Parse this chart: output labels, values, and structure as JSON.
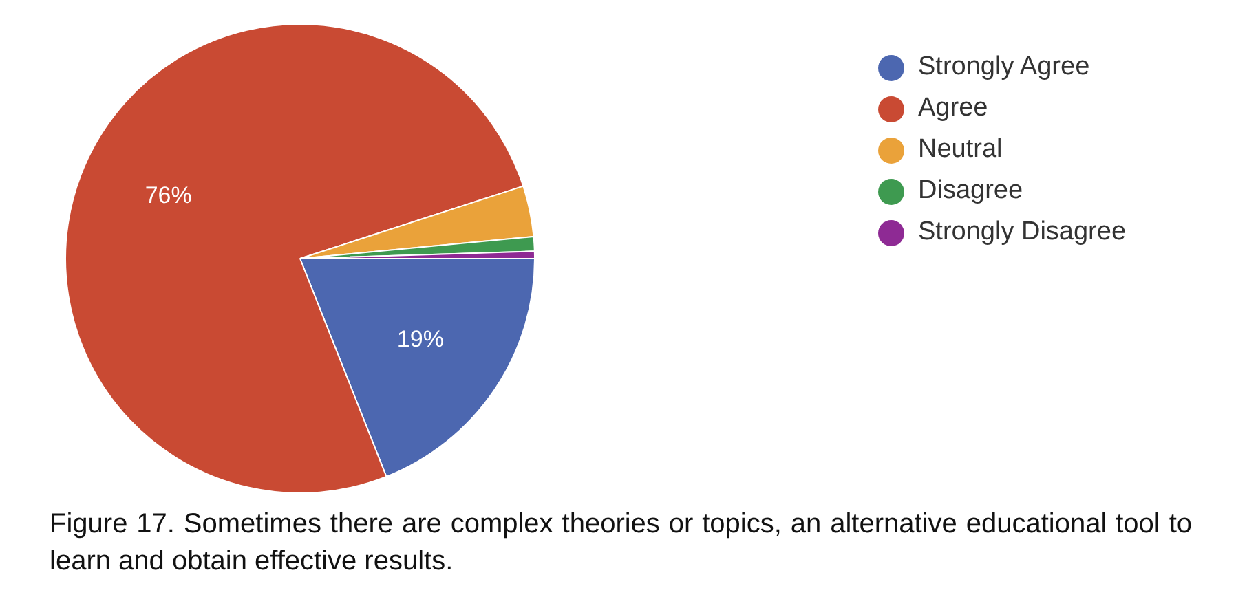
{
  "chart_data": {
    "type": "pie",
    "categories": [
      "Strongly Agree",
      "Agree",
      "Neutral",
      "Disagree",
      "Strongly Disagree"
    ],
    "values": [
      19,
      76,
      3.5,
      1,
      0.5
    ],
    "colors": [
      "#4c67b0",
      "#c94a33",
      "#eaa23a",
      "#3e9a50",
      "#8e2a94"
    ],
    "value_labels": [
      "19%",
      "76%",
      null,
      null,
      null
    ],
    "legend": "top right",
    "annotations": [
      "Figure 17. Sometimes there are complex theories or topics, an alternative educational tool to learn and obtain effective results."
    ]
  }
}
